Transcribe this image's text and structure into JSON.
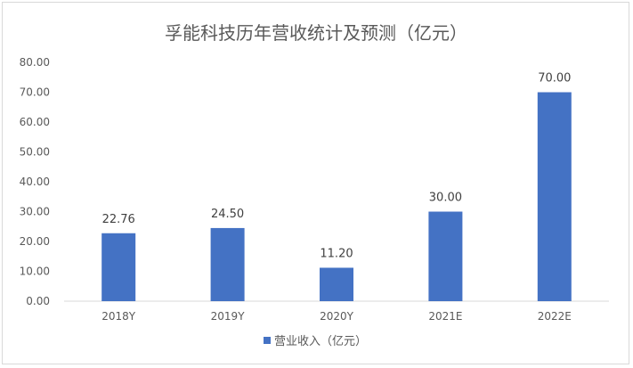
{
  "chart_data": {
    "type": "bar",
    "title": "孚能科技历年营收统计及预测（亿元）",
    "categories": [
      "2018Y",
      "2019Y",
      "2020Y",
      "2021E",
      "2022E"
    ],
    "series": [
      {
        "name": "营业收入（亿元）",
        "values": [
          22.76,
          24.5,
          11.2,
          30.0,
          70.0
        ]
      }
    ],
    "data_labels": [
      "22.76",
      "24.50",
      "11.20",
      "30.00",
      "70.00"
    ],
    "y_ticks": [
      "0.00",
      "10.00",
      "20.00",
      "30.00",
      "40.00",
      "50.00",
      "60.00",
      "70.00",
      "80.00"
    ],
    "ylim": [
      0,
      80
    ],
    "grid": false,
    "legend_position": "bottom",
    "colors": {
      "bar": "#4472c4",
      "axis": "#d9d9d9",
      "text": "#595959"
    }
  }
}
